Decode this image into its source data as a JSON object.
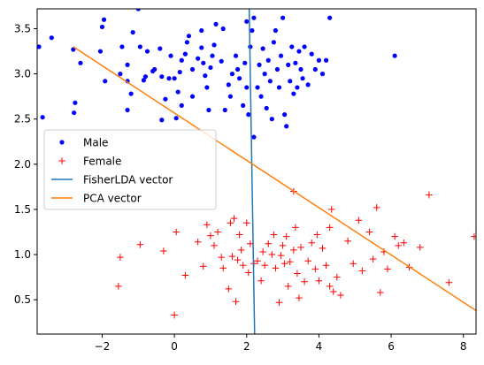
{
  "chart_data": {
    "type": "scatter",
    "title": "",
    "xlabel": "",
    "ylabel": "",
    "xlim": [
      -3.8,
      8.35
    ],
    "ylim": [
      0.12,
      3.72
    ],
    "x_ticks": [
      -2,
      0,
      2,
      4,
      6,
      8
    ],
    "y_ticks": [
      0.5,
      1.0,
      1.5,
      2.0,
      2.5,
      3.0,
      3.5
    ],
    "x_tick_labels": [
      "−2",
      "0",
      "2",
      "4",
      "6",
      "8"
    ],
    "y_tick_labels": [
      "0.5",
      "1.0",
      "1.5",
      "2.0",
      "2.5",
      "3.0",
      "3.5"
    ],
    "grid": false,
    "legend_position": "center-left",
    "series": [
      {
        "name": "Male",
        "kind": "points",
        "marker": "circle",
        "color": "#0000ff",
        "points": [
          [
            -3.75,
            3.3
          ],
          [
            -3.4,
            3.4
          ],
          [
            -3.65,
            2.52
          ],
          [
            -2.8,
            3.27
          ],
          [
            -2.75,
            2.68
          ],
          [
            -2.78,
            2.57
          ],
          [
            -2.6,
            3.12
          ],
          [
            -2.05,
            3.25
          ],
          [
            -2.0,
            3.52
          ],
          [
            -1.95,
            3.6
          ],
          [
            -1.92,
            2.92
          ],
          [
            -1.5,
            3.0
          ],
          [
            -1.45,
            3.3
          ],
          [
            -1.3,
            2.92
          ],
          [
            -1.3,
            3.1
          ],
          [
            -1.15,
            3.46
          ],
          [
            -1.0,
            3.72
          ],
          [
            -1.2,
            2.78
          ],
          [
            -1.3,
            2.6
          ],
          [
            -0.95,
            3.3
          ],
          [
            -0.85,
            2.93
          ],
          [
            -0.8,
            2.97
          ],
          [
            -0.75,
            3.25
          ],
          [
            -0.6,
            3.03
          ],
          [
            -0.55,
            3.05
          ],
          [
            -0.4,
            3.28
          ],
          [
            -0.35,
            2.97
          ],
          [
            -0.35,
            2.49
          ],
          [
            -0.25,
            2.72
          ],
          [
            -0.15,
            2.95
          ],
          [
            -0.1,
            3.2
          ],
          [
            0.0,
            2.95
          ],
          [
            0.05,
            2.51
          ],
          [
            0.1,
            2.8
          ],
          [
            0.15,
            3.02
          ],
          [
            0.2,
            3.15
          ],
          [
            0.2,
            2.65
          ],
          [
            0.3,
            3.22
          ],
          [
            0.35,
            3.35
          ],
          [
            0.4,
            3.42
          ],
          [
            0.5,
            3.05
          ],
          [
            0.5,
            2.75
          ],
          [
            0.65,
            3.17
          ],
          [
            0.75,
            3.29
          ],
          [
            0.75,
            3.48
          ],
          [
            0.8,
            3.12
          ],
          [
            0.85,
            2.98
          ],
          [
            0.9,
            2.85
          ],
          [
            0.95,
            2.6
          ],
          [
            1.0,
            3.07
          ],
          [
            1.05,
            3.2
          ],
          [
            1.1,
            3.32
          ],
          [
            1.15,
            3.55
          ],
          [
            1.3,
            3.14
          ],
          [
            1.35,
            3.5
          ],
          [
            1.4,
            2.6
          ],
          [
            1.5,
            2.88
          ],
          [
            1.55,
            2.75
          ],
          [
            1.6,
            3.0
          ],
          [
            1.7,
            3.2
          ],
          [
            1.75,
            3.05
          ],
          [
            1.8,
            2.95
          ],
          [
            1.9,
            2.65
          ],
          [
            1.95,
            3.12
          ],
          [
            2.0,
            2.85
          ],
          [
            2.0,
            3.58
          ],
          [
            2.05,
            2.55
          ],
          [
            2.1,
            3.3
          ],
          [
            2.15,
            3.48
          ],
          [
            2.2,
            3.62
          ],
          [
            2.3,
            2.85
          ],
          [
            2.35,
            3.1
          ],
          [
            2.4,
            2.75
          ],
          [
            2.45,
            3.28
          ],
          [
            2.5,
            3.0
          ],
          [
            2.55,
            2.62
          ],
          [
            2.6,
            3.15
          ],
          [
            2.65,
            2.92
          ],
          [
            2.7,
            2.5
          ],
          [
            2.75,
            3.35
          ],
          [
            2.8,
            3.48
          ],
          [
            2.85,
            3.05
          ],
          [
            2.9,
            2.85
          ],
          [
            2.95,
            3.2
          ],
          [
            3.0,
            3.62
          ],
          [
            3.05,
            2.55
          ],
          [
            3.1,
            2.42
          ],
          [
            3.15,
            3.1
          ],
          [
            3.2,
            2.92
          ],
          [
            3.25,
            3.3
          ],
          [
            3.3,
            2.78
          ],
          [
            3.35,
            3.12
          ],
          [
            3.4,
            2.85
          ],
          [
            3.45,
            3.25
          ],
          [
            3.5,
            3.05
          ],
          [
            3.55,
            2.95
          ],
          [
            3.6,
            3.3
          ],
          [
            3.7,
            2.88
          ],
          [
            3.8,
            3.22
          ],
          [
            3.9,
            3.05
          ],
          [
            4.0,
            3.15
          ],
          [
            4.1,
            3.0
          ],
          [
            4.2,
            3.15
          ],
          [
            4.3,
            3.62
          ],
          [
            2.2,
            2.3
          ],
          [
            6.1,
            3.2
          ]
        ]
      },
      {
        "name": "Female",
        "kind": "points",
        "marker": "plus",
        "color": "#ff0000",
        "points": [
          [
            -1.55,
            0.65
          ],
          [
            -1.5,
            0.97
          ],
          [
            -0.95,
            1.11
          ],
          [
            -0.3,
            1.04
          ],
          [
            0.0,
            0.33
          ],
          [
            0.05,
            1.25
          ],
          [
            0.3,
            0.77
          ],
          [
            0.65,
            1.14
          ],
          [
            0.8,
            0.87
          ],
          [
            0.9,
            1.33
          ],
          [
            1.0,
            1.21
          ],
          [
            1.1,
            1.1
          ],
          [
            1.2,
            1.25
          ],
          [
            1.3,
            0.97
          ],
          [
            1.35,
            0.85
          ],
          [
            1.5,
            0.62
          ],
          [
            1.55,
            1.35
          ],
          [
            1.6,
            0.98
          ],
          [
            1.65,
            1.4
          ],
          [
            1.7,
            0.48
          ],
          [
            1.75,
            0.94
          ],
          [
            1.8,
            1.22
          ],
          [
            1.85,
            1.05
          ],
          [
            1.9,
            0.88
          ],
          [
            2.0,
            1.35
          ],
          [
            2.05,
            0.8
          ],
          [
            2.1,
            1.12
          ],
          [
            2.2,
            0.9
          ],
          [
            2.3,
            0.93
          ],
          [
            2.4,
            0.71
          ],
          [
            2.45,
            1.03
          ],
          [
            2.5,
            0.88
          ],
          [
            2.6,
            1.12
          ],
          [
            2.7,
            1.0
          ],
          [
            2.75,
            1.22
          ],
          [
            2.8,
            0.85
          ],
          [
            2.9,
            0.47
          ],
          [
            2.95,
            0.99
          ],
          [
            3.0,
            1.1
          ],
          [
            3.05,
            0.9
          ],
          [
            3.1,
            1.2
          ],
          [
            3.15,
            0.65
          ],
          [
            3.2,
            0.92
          ],
          [
            3.3,
            1.05
          ],
          [
            3.35,
            1.3
          ],
          [
            3.4,
            0.79
          ],
          [
            3.45,
            0.52
          ],
          [
            3.5,
            1.08
          ],
          [
            3.6,
            0.7
          ],
          [
            3.7,
            0.93
          ],
          [
            3.8,
            1.13
          ],
          [
            3.9,
            0.84
          ],
          [
            3.95,
            1.22
          ],
          [
            4.0,
            0.71
          ],
          [
            4.1,
            1.07
          ],
          [
            4.2,
            0.88
          ],
          [
            4.3,
            0.65
          ],
          [
            4.35,
            1.5
          ],
          [
            4.4,
            0.59
          ],
          [
            4.5,
            0.75
          ],
          [
            4.6,
            0.55
          ],
          [
            4.8,
            1.15
          ],
          [
            4.95,
            0.9
          ],
          [
            5.1,
            1.38
          ],
          [
            5.2,
            0.82
          ],
          [
            5.4,
            1.25
          ],
          [
            5.5,
            0.95
          ],
          [
            5.6,
            1.52
          ],
          [
            5.7,
            0.58
          ],
          [
            5.8,
            1.03
          ],
          [
            5.9,
            0.84
          ],
          [
            6.1,
            1.2
          ],
          [
            6.2,
            1.1
          ],
          [
            6.35,
            1.13
          ],
          [
            6.5,
            0.86
          ],
          [
            6.8,
            1.08
          ],
          [
            7.05,
            1.66
          ],
          [
            7.6,
            0.69
          ],
          [
            8.3,
            1.2
          ],
          [
            3.3,
            1.7
          ],
          [
            4.3,
            1.3
          ]
        ]
      },
      {
        "name": "FisherLDA vector",
        "kind": "line",
        "color": "#1f77b4",
        "points": [
          [
            2.07,
            3.72
          ],
          [
            2.22,
            0.12
          ]
        ]
      },
      {
        "name": "PCA vector",
        "kind": "line",
        "color": "#ff7f0e",
        "points": [
          [
            -2.8,
            3.3
          ],
          [
            8.35,
            0.38
          ]
        ]
      }
    ]
  }
}
